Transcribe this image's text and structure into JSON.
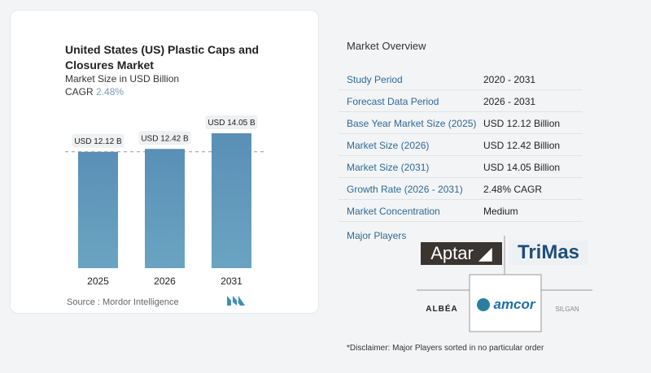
{
  "chart_card": {
    "title": "United States (US) Plastic Caps and Closures Market",
    "subtitle": "Market Size in USD Billion",
    "cagr_label": "CAGR",
    "cagr_value": "2.48%",
    "source": "Source :  Mordor Intelligence"
  },
  "chart_data": {
    "type": "bar",
    "categories": [
      "2025",
      "2026",
      "2031"
    ],
    "values": [
      12.12,
      12.42,
      14.05
    ],
    "data_labels": [
      "USD 12.12 B",
      "USD 12.42 B",
      "USD 14.05 B"
    ],
    "ylim": [
      0,
      14.05
    ],
    "bar_color": "#5b93b8",
    "grid": false
  },
  "overview": {
    "title": "Market Overview",
    "rows": [
      {
        "label": "Study Period",
        "value": "2020 - 2031"
      },
      {
        "label": "Forecast Data Period",
        "value": "2026 - 2031"
      },
      {
        "label": "Base Year Market Size (2025)",
        "value": "USD 12.12 Billion"
      },
      {
        "label": "Market Size (2026)",
        "value": "USD 12.42 Billion"
      },
      {
        "label": "Market Size (2031)",
        "value": "USD 14.05 Billion"
      },
      {
        "label": "Growth Rate (2026 - 2031)",
        "value": "2.48% CAGR"
      },
      {
        "label": "Market Concentration",
        "value": "Medium"
      }
    ],
    "major_players_label": "Major Players",
    "players": [
      "Aptar",
      "TriMas",
      "ALBÉA",
      "amcor",
      "SILGAN"
    ],
    "disclaimer": "*Disclaimer: Major Players sorted in no particular order"
  }
}
